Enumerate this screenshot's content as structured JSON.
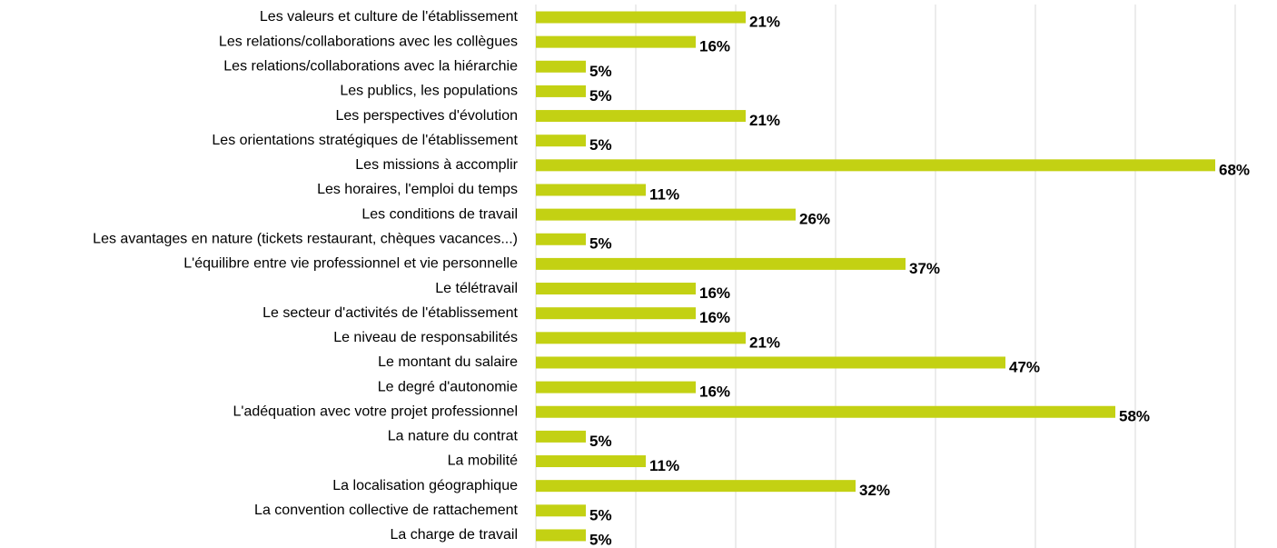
{
  "chart_data": {
    "type": "bar",
    "orientation": "horizontal",
    "color": "#c3d113",
    "grid": true,
    "xlim": [
      0,
      70
    ],
    "xticks": [
      0,
      10,
      20,
      30,
      40,
      50,
      60,
      70
    ],
    "categories": [
      "Les valeurs et culture de l'établissement",
      "Les relations/collaborations avec les collègues",
      "Les relations/collaborations avec la hiérarchie",
      "Les publics, les populations",
      "Les perspectives d'évolution",
      "Les orientations stratégiques de l'établissement",
      "Les missions à accomplir",
      "Les horaires, l'emploi du temps",
      "Les conditions de travail",
      "Les avantages en nature (tickets restaurant, chèques vacances...)",
      "L'équilibre entre vie professionnel et vie personnelle",
      "Le télétravail",
      "Le secteur d'activités de l'établissement",
      "Le niveau de responsabilités",
      "Le montant du salaire",
      "Le degré d'autonomie",
      "L'adéquation avec votre projet professionnel",
      "La nature du contrat",
      "La mobilité",
      "La localisation géographique",
      "La convention collective de rattachement",
      "La charge de travail"
    ],
    "values": [
      21,
      16,
      5,
      5,
      21,
      5,
      68,
      11,
      26,
      5,
      37,
      16,
      16,
      21,
      47,
      16,
      58,
      5,
      11,
      32,
      5,
      5
    ],
    "value_labels": [
      "21%",
      "16%",
      "5%",
      "5%",
      "21%",
      "5%",
      "68%",
      "11%",
      "26%",
      "5%",
      "37%",
      "16%",
      "16%",
      "21%",
      "47%",
      "16%",
      "58%",
      "5%",
      "11%",
      "32%",
      "5%",
      "5%"
    ]
  }
}
